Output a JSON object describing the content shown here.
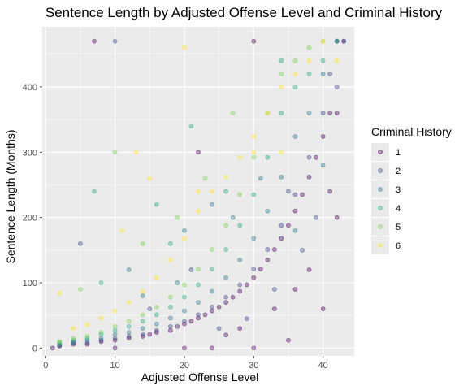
{
  "chart_data": {
    "type": "scatter",
    "title": "Sentence Length by Adjusted Offense Level and Criminal History",
    "xlabel": "Adjusted Offense Level",
    "ylabel": "Sentence Length (Months)",
    "xlim": [
      -0.5,
      44.5
    ],
    "ylim": [
      -12,
      492
    ],
    "x_ticks": [
      0,
      10,
      20,
      30,
      40
    ],
    "y_ticks": [
      0,
      100,
      200,
      300,
      400
    ],
    "grid": true,
    "background": "#ebebeb",
    "legend": {
      "title": "Criminal History",
      "position": "right",
      "entries": [
        "1",
        "2",
        "3",
        "4",
        "5",
        "6"
      ],
      "colors": [
        "#440154",
        "#414487",
        "#2a788e",
        "#22a884",
        "#7ad151",
        "#fde725"
      ]
    },
    "point_alpha": 0.4,
    "series": [
      {
        "name": "1",
        "color": "#440154",
        "points": [
          [
            1,
            0
          ],
          [
            2,
            3
          ],
          [
            4,
            6
          ],
          [
            6,
            6
          ],
          [
            8,
            10
          ],
          [
            10,
            12
          ],
          [
            12,
            15
          ],
          [
            14,
            18
          ],
          [
            15,
            21
          ],
          [
            16,
            24
          ],
          [
            18,
            27
          ],
          [
            19,
            33
          ],
          [
            20,
            37
          ],
          [
            21,
            41
          ],
          [
            22,
            46
          ],
          [
            23,
            51
          ],
          [
            24,
            57
          ],
          [
            25,
            63
          ],
          [
            26,
            70
          ],
          [
            27,
            78
          ],
          [
            28,
            87
          ],
          [
            29,
            97
          ],
          [
            30,
            108
          ],
          [
            31,
            121
          ],
          [
            32,
            135
          ],
          [
            33,
            151
          ],
          [
            34,
            168
          ],
          [
            35,
            188
          ],
          [
            36,
            210
          ],
          [
            37,
            235
          ],
          [
            38,
            262
          ],
          [
            39,
            292
          ],
          [
            40,
            324
          ],
          [
            41,
            360
          ],
          [
            42,
            360
          ],
          [
            43,
            470
          ],
          [
            24,
            0
          ],
          [
            30,
            0
          ],
          [
            35,
            12
          ],
          [
            40,
            60
          ],
          [
            10,
            0
          ],
          [
            20,
            0
          ],
          [
            28,
            30
          ],
          [
            33,
            60
          ],
          [
            38,
            120
          ],
          [
            42,
            200
          ],
          [
            26,
            20
          ],
          [
            36,
            90
          ],
          [
            41,
            240
          ],
          [
            42,
            470
          ],
          [
            7,
            470
          ],
          [
            30,
            470
          ],
          [
            22,
            300
          ]
        ]
      },
      {
        "name": "2",
        "color": "#414487",
        "points": [
          [
            2,
            4
          ],
          [
            4,
            8
          ],
          [
            6,
            8
          ],
          [
            8,
            12
          ],
          [
            10,
            15
          ],
          [
            12,
            18
          ],
          [
            14,
            21
          ],
          [
            16,
            27
          ],
          [
            18,
            33
          ],
          [
            20,
            41
          ],
          [
            22,
            51
          ],
          [
            24,
            63
          ],
          [
            26,
            78
          ],
          [
            28,
            97
          ],
          [
            30,
            121
          ],
          [
            32,
            151
          ],
          [
            34,
            188
          ],
          [
            36,
            235
          ],
          [
            38,
            292
          ],
          [
            40,
            360
          ],
          [
            42,
            400
          ],
          [
            43,
            470
          ],
          [
            25,
            30
          ],
          [
            33,
            90
          ],
          [
            37,
            150
          ],
          [
            15,
            60
          ],
          [
            39,
            200
          ],
          [
            29,
            45
          ],
          [
            21,
            120
          ],
          [
            35,
            240
          ],
          [
            10,
            470
          ],
          [
            5,
            160
          ],
          [
            41,
            420
          ]
        ]
      },
      {
        "name": "3",
        "color": "#2a788e",
        "points": [
          [
            2,
            6
          ],
          [
            4,
            10
          ],
          [
            6,
            12
          ],
          [
            8,
            15
          ],
          [
            10,
            21
          ],
          [
            12,
            24
          ],
          [
            14,
            30
          ],
          [
            16,
            37
          ],
          [
            18,
            46
          ],
          [
            20,
            57
          ],
          [
            22,
            70
          ],
          [
            24,
            87
          ],
          [
            26,
            108
          ],
          [
            28,
            135
          ],
          [
            30,
            168
          ],
          [
            32,
            210
          ],
          [
            34,
            262
          ],
          [
            36,
            324
          ],
          [
            38,
            360
          ],
          [
            40,
            420
          ],
          [
            42,
            470
          ],
          [
            12,
            120
          ],
          [
            20,
            180
          ],
          [
            27,
            200
          ],
          [
            31,
            260
          ],
          [
            24,
            220
          ],
          [
            36,
            180
          ],
          [
            19,
            100
          ],
          [
            14,
            80
          ],
          [
            40,
            280
          ]
        ]
      },
      {
        "name": "4",
        "color": "#22a884",
        "points": [
          [
            2,
            8
          ],
          [
            4,
            12
          ],
          [
            6,
            15
          ],
          [
            8,
            21
          ],
          [
            10,
            27
          ],
          [
            12,
            33
          ],
          [
            14,
            41
          ],
          [
            16,
            51
          ],
          [
            18,
            63
          ],
          [
            20,
            78
          ],
          [
            22,
            97
          ],
          [
            24,
            121
          ],
          [
            26,
            151
          ],
          [
            28,
            188
          ],
          [
            30,
            235
          ],
          [
            32,
            292
          ],
          [
            34,
            360
          ],
          [
            36,
            400
          ],
          [
            38,
            420
          ],
          [
            40,
            440
          ],
          [
            42,
            470
          ],
          [
            8,
            100
          ],
          [
            18,
            160
          ],
          [
            26,
            240
          ],
          [
            7,
            240
          ],
          [
            21,
            340
          ],
          [
            34,
            440
          ],
          [
            16,
            220
          ]
        ]
      },
      {
        "name": "5",
        "color": "#7ad151",
        "points": [
          [
            2,
            10
          ],
          [
            4,
            15
          ],
          [
            6,
            18
          ],
          [
            8,
            24
          ],
          [
            10,
            33
          ],
          [
            12,
            41
          ],
          [
            14,
            51
          ],
          [
            16,
            63
          ],
          [
            18,
            78
          ],
          [
            20,
            97
          ],
          [
            22,
            121
          ],
          [
            24,
            151
          ],
          [
            26,
            188
          ],
          [
            28,
            235
          ],
          [
            30,
            292
          ],
          [
            32,
            360
          ],
          [
            34,
            420
          ],
          [
            36,
            440
          ],
          [
            38,
            460
          ],
          [
            40,
            470
          ],
          [
            10,
            300
          ],
          [
            19,
            200
          ],
          [
            27,
            360
          ],
          [
            5,
            90
          ],
          [
            14,
            160
          ],
          [
            23,
            260
          ]
        ]
      },
      {
        "name": "6",
        "color": "#fde725",
        "points": [
          [
            2,
            84
          ],
          [
            4,
            30
          ],
          [
            6,
            36
          ],
          [
            8,
            46
          ],
          [
            10,
            57
          ],
          [
            12,
            70
          ],
          [
            14,
            87
          ],
          [
            16,
            108
          ],
          [
            18,
            135
          ],
          [
            20,
            168
          ],
          [
            22,
            210
          ],
          [
            24,
            240
          ],
          [
            26,
            262
          ],
          [
            28,
            292
          ],
          [
            30,
            324
          ],
          [
            32,
            360
          ],
          [
            34,
            400
          ],
          [
            36,
            420
          ],
          [
            38,
            440
          ],
          [
            40,
            470
          ],
          [
            42,
            440
          ],
          [
            13,
            300
          ],
          [
            15,
            260
          ],
          [
            20,
            460
          ],
          [
            30,
            300
          ],
          [
            34,
            300
          ],
          [
            22,
            240
          ],
          [
            11,
            180
          ]
        ]
      }
    ]
  }
}
